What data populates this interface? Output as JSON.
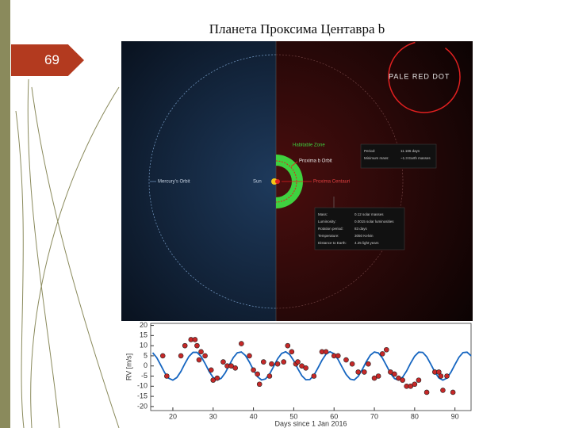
{
  "slide_number": "69",
  "title": "Планета Проксима Центавра b",
  "diagram": {
    "logo": "PALE RED DOT",
    "habitable_zone": "Habitable Zone",
    "orbit": "Proxima b Orbit",
    "mercury": "Mercury's Orbit",
    "sun": "Sun",
    "star": "Proxima Centauri",
    "planet_box": [
      [
        "Period:",
        "11.186 days"
      ],
      [
        "Minimum mass:",
        "~1.3 Earth masses"
      ]
    ],
    "star_box": [
      [
        "Mass:",
        "0.12 solar masses"
      ],
      [
        "Luminosity:",
        "0.0015 solar luminosities"
      ],
      [
        "Rotation period:",
        "83 days"
      ],
      [
        "Temperature:",
        "3050 Kelvin"
      ],
      [
        "Distance to Earth:",
        "4.25 light years"
      ]
    ]
  },
  "chart_data": {
    "type": "scatter",
    "x_label": "Days since 1 Jan 2016",
    "y_label": "RV [m/s]",
    "xlim": [
      14.5,
      94
    ],
    "ylim": [
      -22,
      21
    ],
    "xticks": [
      20,
      30,
      40,
      50,
      60,
      70,
      80,
      90
    ],
    "yticks": [
      20,
      15,
      10,
      5,
      0,
      -5,
      -10,
      -15,
      -20
    ],
    "series": [
      {
        "color": "#c62828",
        "x": [
          17.5,
          18.5,
          22,
          23,
          24.5,
          25.5,
          26,
          26.5,
          27,
          28,
          29.5,
          30,
          31,
          32.5,
          33.5,
          34.5,
          35.5,
          37,
          39,
          40,
          41,
          41.5,
          42.5,
          44,
          44.5,
          46,
          47.5,
          48.5,
          49.5,
          50.5,
          51,
          52,
          53,
          55,
          57,
          58,
          60,
          61,
          63,
          64.5,
          66,
          67.5,
          68.5,
          70,
          71,
          72,
          73,
          74,
          75,
          76,
          77,
          78,
          79,
          80,
          81,
          83,
          85,
          86,
          86.5,
          87,
          88,
          89.5
        ],
        "values": [
          5,
          -5,
          5,
          10,
          13,
          13,
          10,
          3,
          7,
          5,
          -2,
          -7,
          -6,
          2,
          0,
          0,
          -1,
          11,
          5,
          -2,
          -4,
          -9,
          2,
          -5,
          1,
          1,
          2,
          10,
          7,
          1,
          2,
          0,
          -1,
          -5,
          7,
          7,
          5,
          5,
          3,
          1,
          -3,
          -3,
          1,
          -6,
          -5,
          6,
          8,
          -3,
          -4,
          -6,
          -7,
          -10,
          -10,
          -9,
          -7,
          -13,
          -3,
          -3,
          -5,
          -12,
          -5,
          -13
        ]
      },
      {
        "type": "line",
        "color": "#1565c0",
        "x": [
          15,
          16,
          17,
          18,
          19,
          20,
          21,
          22,
          23,
          24,
          25,
          26,
          27,
          28,
          29,
          30,
          31,
          32,
          33,
          34,
          35,
          36,
          37,
          38,
          39,
          40,
          41,
          42,
          43,
          44,
          45,
          46,
          47,
          48,
          49,
          50,
          51,
          52,
          53,
          54,
          55,
          56,
          57,
          58,
          59,
          60,
          61,
          62,
          63,
          64,
          65,
          66,
          67,
          68,
          69,
          70,
          71,
          72,
          73,
          74,
          75,
          76,
          77,
          78,
          79,
          80,
          81,
          82,
          83,
          84,
          85,
          86,
          87,
          88,
          89,
          90,
          91,
          92,
          93,
          94
        ],
        "values": [
          6.5,
          4.1,
          0.4,
          -3.4,
          -6.1,
          -7.0,
          -5.7,
          -2.7,
          1.2,
          4.7,
          6.7,
          6.7,
          4.7,
          1.2,
          -2.7,
          -5.7,
          -7.0,
          -6.1,
          -3.4,
          0.4,
          4.1,
          6.5,
          6.9,
          5.2,
          1.9,
          -2.0,
          -5.3,
          -6.9,
          -6.4,
          -4.0,
          -0.3,
          3.5,
          6.2,
          7.0,
          5.6,
          2.6,
          -1.3,
          -4.8,
          -6.8,
          -6.7,
          -4.6,
          -1.0,
          2.8,
          5.8,
          7.0,
          6.0,
          3.2,
          -0.6,
          -4.2,
          -6.5,
          -6.9,
          -5.1,
          -1.8,
          2.1,
          5.3,
          6.9,
          6.4,
          3.9,
          0.2,
          -3.6,
          -6.2,
          -7.0,
          -5.6,
          -2.5,
          1.4,
          4.8,
          6.8,
          6.7,
          4.5,
          0.9,
          -2.9,
          -5.9,
          -7.0,
          -6.0,
          -3.1,
          0.7,
          4.3,
          6.6,
          6.8,
          5.0
        ]
      }
    ]
  }
}
